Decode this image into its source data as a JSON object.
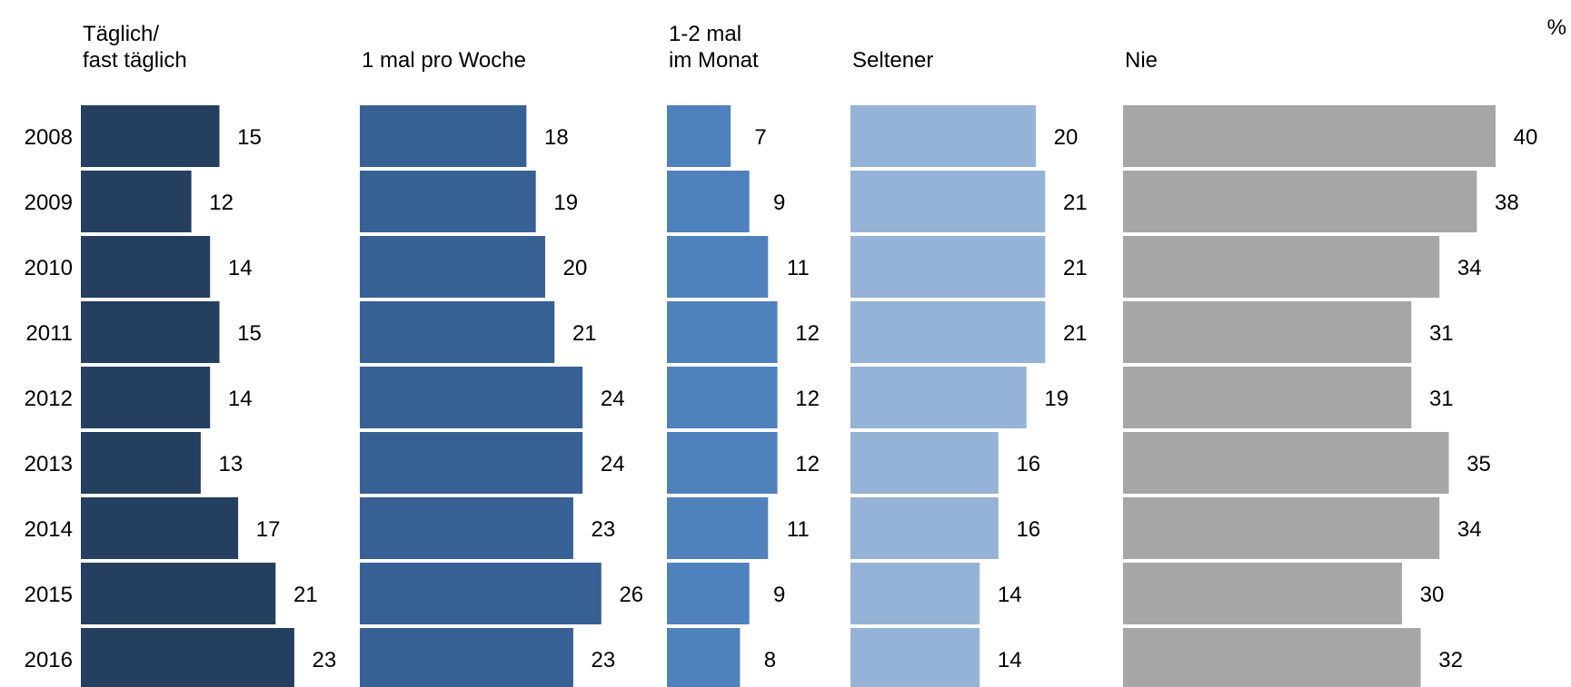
{
  "chart_data": {
    "type": "bar",
    "orientation": "horizontal",
    "layout": "small-multiples",
    "unit_label": "%",
    "categories": [
      "2008",
      "2009",
      "2010",
      "2011",
      "2012",
      "2013",
      "2014",
      "2015",
      "2016"
    ],
    "series": [
      {
        "name": "Täglich/\nfast täglich",
        "color": "#243f5f",
        "values": [
          15,
          12,
          14,
          15,
          14,
          13,
          17,
          21,
          23
        ]
      },
      {
        "name": "1 mal pro Woche",
        "color": "#376194",
        "values": [
          18,
          19,
          20,
          21,
          24,
          24,
          23,
          26,
          23
        ]
      },
      {
        "name": "1-2 mal\nim Monat",
        "color": "#4f81bd",
        "values": [
          7,
          9,
          11,
          12,
          12,
          12,
          11,
          9,
          8
        ]
      },
      {
        "name": "Seltener",
        "color": "#95b3d7",
        "values": [
          20,
          21,
          21,
          21,
          19,
          16,
          16,
          14,
          14
        ]
      },
      {
        "name": "Nie",
        "color": "#a6a6a6",
        "values": [
          40,
          38,
          34,
          31,
          31,
          35,
          34,
          30,
          32
        ]
      }
    ],
    "data_labels": true,
    "grid": false,
    "legend": "none"
  }
}
